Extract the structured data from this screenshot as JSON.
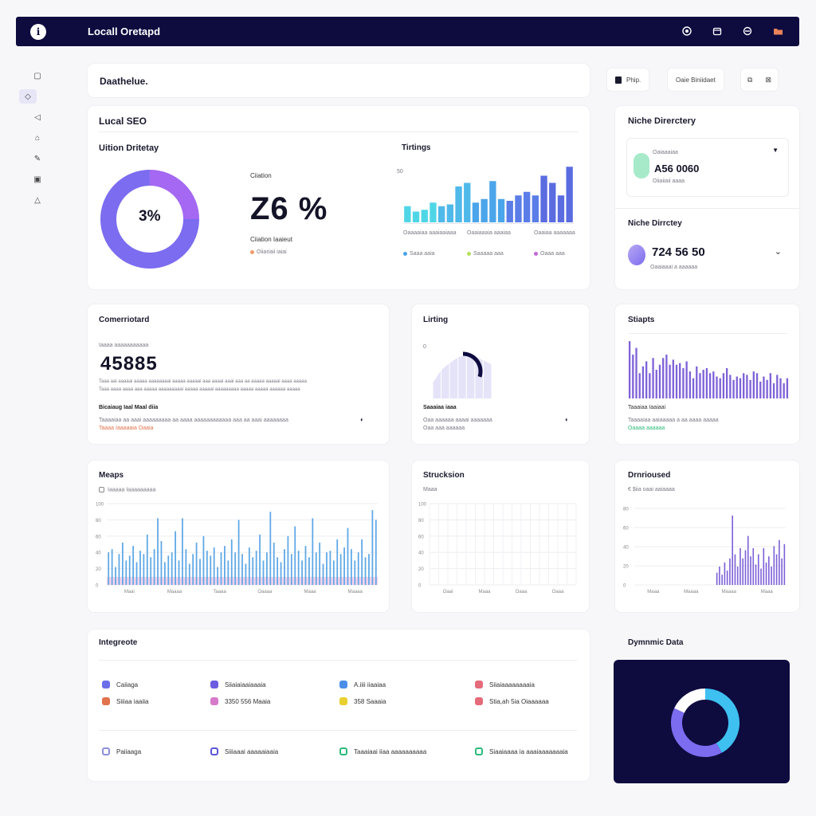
{
  "app": {
    "title": "Locall Oretapd",
    "logo_glyph": "i"
  },
  "topbar_icons": [
    "target-icon",
    "calendar-icon",
    "user-icon",
    "folder-icon"
  ],
  "sidebar": {
    "items": [
      {
        "icon": "box-icon",
        "glyph": "▢"
      },
      {
        "icon": "tag-icon",
        "glyph": "◇",
        "active": true
      },
      {
        "icon": "pin-icon",
        "glyph": "◁"
      },
      {
        "icon": "house-icon",
        "glyph": "⌂"
      },
      {
        "icon": "pen-icon",
        "glyph": "✎"
      },
      {
        "icon": "briefcase-icon",
        "glyph": "▣"
      },
      {
        "icon": "chart-icon",
        "glyph": "△"
      }
    ]
  },
  "header": {
    "title": "Daathelue.",
    "btn1": "Phip.",
    "btn2": "Oaie Biniidaet"
  },
  "local_seo": {
    "title": "Lucal SEO",
    "sub": "Uition Dritetay",
    "donut_label": "3%",
    "donut_value": 0.25,
    "metric_label": "Ciiation",
    "metric_value": "Z6 %",
    "metric_caption": "Ciiation Iaaieut",
    "metric_legend": "Oiiariaii iaiai",
    "colors": {
      "donut_main": "#7b6cf0",
      "donut_accent": "#a468f2"
    }
  },
  "tirtings": {
    "title": "Tirtings",
    "axis_label": "50",
    "legend": [
      {
        "top": "Oaaaaiaa aaaiaaiaaa",
        "bottom": "Saaa aaia",
        "color": "#4aa3e8"
      },
      {
        "top": "Oaaiaaaia aaaiaa",
        "bottom": "Saaaaa aaa",
        "color": "#b5df5a"
      },
      {
        "top": "Oaaiaa aaaaaaa",
        "bottom": "Oaaa aaa",
        "color": "#c06ad8"
      }
    ]
  },
  "niche_directory": {
    "title": "Niche Direrctery",
    "sub_label": "Oaiaaaiaa",
    "value": "A56 0060",
    "caption": "Oiiaiiaii aaaa"
  },
  "niche_directory2": {
    "title": "Niche Dirrctey",
    "value": "724 56 50",
    "caption": "Oaaiaaai a aaaaaa"
  },
  "commented": {
    "title": "Comerriotard",
    "caption_top": "Iaaaa aaaaaaaaaaa",
    "value": "45885",
    "body_line1": "Taaa aai aaaaai aaaaa aaaaaaaai aaaaa aaaaai aaa aaaai aaai aaa aa aaaaa aaaaai aaaa aaaaa",
    "body_line2": "Taaa aaaa aaaa aaa aaaaa aaaaaaaaai aaaaa aaaaai aaaaaaaaa aaaaa aaaaa aaaaaa aaaaa",
    "sub_title": "Bicaiaug Iaal Maal diia",
    "sub_line": "Taaaaiaa aa aaai aaaaaaaaa aa aaaa aaaaaaaaaaaa aaa aa aaai aaaaaaaa",
    "sub_line2": "Taaaa Iaaaaaia Oaaia"
  },
  "listing": {
    "title": "Lirting",
    "axis_label": "0",
    "legend_title": "Saaaiaa iaaa",
    "legend_line1": "Oaa aaaaaa aaaai aaaaaaa",
    "legend_line2": "Oaa aaa aaaaaa"
  },
  "streaks": {
    "title": "Stiapts",
    "legend_title": "Taaaiaa Iaaiaai",
    "legend_line1": "Taaaaiaa aaiaaaaa a aa aaaa aaaaa",
    "legend_line2": "Oaaaa aaaaaa"
  },
  "maps": {
    "title": "Meaps",
    "legend": "Iaaaaa Iaaaaaaaaa",
    "yticks": [
      "100",
      "80",
      "60",
      "40",
      "20",
      "0"
    ],
    "xticks": [
      "Maai",
      "Maaaa",
      "Taaaa",
      "Oaaaa",
      "Maaa",
      "Maaaa"
    ]
  },
  "structure": {
    "title": "Strucksion",
    "legend": "Maaa",
    "yticks": [
      "100",
      "80",
      "60",
      "40",
      "20",
      "0"
    ],
    "xticks": [
      "Oaai",
      "Maaa",
      "Oaaa",
      "Oaaa"
    ]
  },
  "distributed": {
    "title": "Drnrioused",
    "legend": "€ $iia oaai aaiaaaa",
    "yticks": [
      "80",
      "60",
      "40",
      "20",
      "0"
    ],
    "xticks": [
      "Maaa",
      "Maaaa",
      "Maaaa",
      "Maaa"
    ]
  },
  "integrate": {
    "title": "Integreote",
    "rows1": [
      {
        "icon": "globe-icon",
        "color": "#6b6ee8",
        "label": "Caiiaga"
      },
      {
        "icon": "layers-icon",
        "color": "#6b5ce0",
        "label": "Siiaiaiaaiaaaia"
      },
      {
        "icon": "grid-icon",
        "color": "#4a8ee8",
        "label": "A.iiii iiaaiaa"
      },
      {
        "icon": "alert-icon",
        "color": "#e56a7a",
        "label": "Siiaiaaaaaaaaia"
      }
    ],
    "rows2": [
      {
        "icon": "camera-icon",
        "color": "#e2734c",
        "label": "Siiiaa iaaiia"
      },
      {
        "icon": "keyboard-icon",
        "color": "#d77bc9",
        "label": "3350 556 Maaia"
      },
      {
        "icon": "note-icon",
        "color": "#e8cf2e",
        "label": "358 Saaaia"
      },
      {
        "icon": "play-icon",
        "color": "#e56a7a",
        "label": "Stia,ah 5ia Oiaaaaaa"
      }
    ],
    "rows3": [
      {
        "icon": "bulb-icon",
        "color": "#8b8fd8",
        "label": "Paiiaaga"
      },
      {
        "icon": "chat-icon",
        "color": "#5c56d8",
        "label": "Siiiaaai aaaaaiaaia"
      },
      {
        "icon": "leaf-icon",
        "color": "#2dba7a",
        "label": "Taaaiaai iiaa aaaaaaaaaa"
      },
      {
        "icon": "check-icon",
        "color": "#2dba7a",
        "label": "Siaaiaaaa ia aaaiaaaaaaaia"
      }
    ]
  },
  "dynamic_data": {
    "title": "Dymnmic Data",
    "donut_value": 0.42,
    "colors": {
      "bg": "#0e0b3f",
      "ring_a": "#7b6cf0",
      "ring_b": "#3ec0f0",
      "ring_c": "#ffffff"
    }
  },
  "chart_data": [
    {
      "type": "bar",
      "name_id": "tirtings",
      "values": [
        18,
        12,
        14,
        22,
        18,
        20,
        40,
        44,
        22,
        26,
        46,
        26,
        24,
        30,
        34,
        30,
        52,
        44,
        30,
        62
      ],
      "colors": [
        "#4fd6e6",
        "#4fb9ea",
        "#4ba5ea",
        "#5a7de8",
        "#5a6ce0"
      ],
      "ylim": [
        0,
        64
      ]
    },
    {
      "type": "area",
      "name_id": "listing",
      "values": [
        22,
        40,
        50,
        58,
        62,
        60,
        54,
        48
      ],
      "gauge_value": 0.3,
      "ylim": [
        0,
        70
      ]
    },
    {
      "type": "bar",
      "name_id": "streaks",
      "values": [
        68,
        52,
        60,
        30,
        38,
        44,
        30,
        48,
        34,
        40,
        48,
        52,
        40,
        46,
        40,
        42,
        36,
        44,
        32,
        24,
        38,
        30,
        34,
        36,
        30,
        32,
        26,
        24,
        30,
        36,
        28,
        22,
        26,
        24,
        30,
        28,
        22,
        32,
        30,
        20,
        26,
        22,
        30,
        18,
        28,
        24,
        18,
        24
      ],
      "ylim": [
        0,
        70
      ]
    },
    {
      "type": "bar",
      "name_id": "maps",
      "values": [
        40,
        44,
        22,
        38,
        52,
        30,
        36,
        48,
        28,
        42,
        38,
        62,
        34,
        44,
        82,
        54,
        28,
        36,
        40,
        66,
        30,
        82,
        44,
        26,
        38,
        52,
        32,
        60,
        42,
        36,
        46,
        22,
        40,
        48,
        30,
        56,
        40,
        80,
        38,
        26,
        46,
        34,
        42,
        62,
        30,
        40,
        90,
        52,
        34,
        28,
        44,
        60,
        38,
        72,
        42,
        30,
        48,
        34,
        82,
        40,
        52,
        26,
        40,
        42,
        30,
        56,
        38,
        46,
        70,
        44,
        30,
        40,
        56,
        34,
        38,
        92,
        80
      ],
      "ylim": [
        0,
        100
      ]
    },
    {
      "type": "bar",
      "name_id": "distributed",
      "values": [
        12,
        18,
        10,
        22,
        14,
        26,
        68,
        30,
        18,
        36,
        26,
        34,
        48,
        28,
        36,
        20,
        30,
        16,
        36,
        22,
        28,
        18,
        38,
        30,
        44,
        26,
        40
      ],
      "ylim": [
        0,
        75
      ]
    }
  ]
}
